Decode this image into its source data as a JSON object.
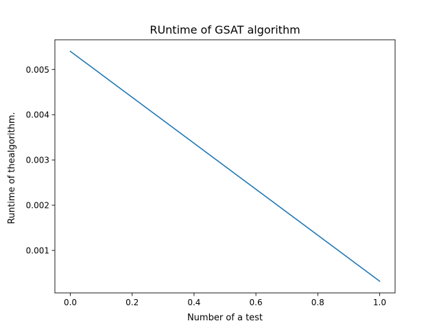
{
  "chart_data": {
    "type": "line",
    "title": "RUntime of GSAT algorithm",
    "xlabel": "Number of a test",
    "ylabel": "Runtime of thealgorithm.",
    "xlim": [
      -0.05,
      1.05
    ],
    "ylim": [
      6.1e-05,
      0.005656
    ],
    "x_ticks": [
      0.0,
      0.2,
      0.4,
      0.6,
      0.8,
      1.0
    ],
    "x_tick_labels": [
      "0.0",
      "0.2",
      "0.4",
      "0.6",
      "0.8",
      "1.0"
    ],
    "y_ticks": [
      0.001,
      0.002,
      0.003,
      0.004,
      0.005
    ],
    "y_tick_labels": [
      "0.001",
      "0.002",
      "0.003",
      "0.004",
      "0.005"
    ],
    "grid": false,
    "series": [
      {
        "color": "#1f77b4",
        "x": [
          0.0,
          1.0
        ],
        "y": [
          0.0054,
          0.00032
        ]
      }
    ]
  }
}
